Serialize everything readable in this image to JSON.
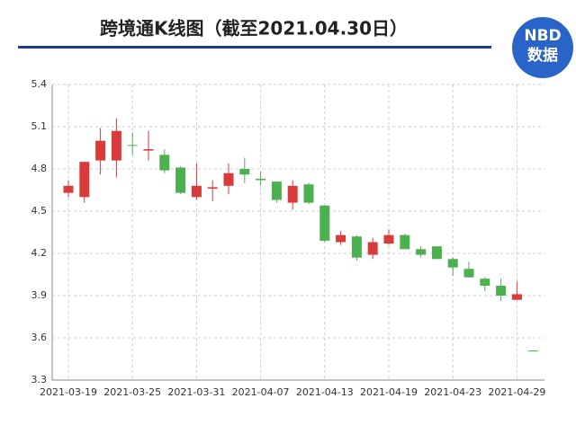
{
  "logo": [
    "NBD",
    "数据"
  ],
  "chart_data": {
    "type": "candlestick",
    "title": "跨境通K线图（截至2021.04.30日）",
    "categories": [
      "2021-03-19",
      null,
      null,
      null,
      "2021-03-25",
      null,
      null,
      null,
      "2021-03-31",
      null,
      null,
      null,
      "2021-04-07",
      null,
      null,
      null,
      "2021-04-13",
      null,
      null,
      null,
      "2021-04-19",
      null,
      null,
      null,
      "2021-04-23",
      null,
      null,
      null,
      "2021-04-29",
      null
    ],
    "open": [
      4.63,
      4.6,
      4.86,
      4.86,
      4.97,
      4.93,
      4.9,
      4.81,
      4.6,
      4.66,
      4.68,
      4.8,
      4.73,
      4.71,
      4.56,
      4.69,
      4.54,
      4.28,
      4.32,
      4.19,
      4.27,
      4.33,
      4.23,
      4.25,
      4.16,
      4.09,
      4.02,
      3.97,
      3.87,
      3.51
    ],
    "high": [
      4.72,
      4.85,
      5.09,
      5.16,
      5.06,
      5.07,
      4.94,
      4.82,
      4.84,
      4.72,
      4.84,
      4.88,
      4.78,
      4.71,
      4.72,
      4.7,
      4.54,
      4.36,
      4.33,
      4.31,
      4.37,
      4.34,
      4.25,
      4.25,
      4.17,
      4.14,
      4.03,
      4.02,
      4.0,
      3.51
    ],
    "low": [
      4.6,
      4.56,
      4.76,
      4.74,
      4.9,
      4.86,
      4.77,
      4.62,
      4.58,
      4.57,
      4.62,
      4.7,
      4.68,
      4.56,
      4.51,
      4.55,
      4.28,
      4.26,
      4.15,
      4.16,
      4.26,
      4.23,
      4.17,
      4.16,
      4.04,
      4.03,
      3.93,
      3.86,
      3.87,
      3.51
    ],
    "close": [
      4.68,
      4.85,
      5.0,
      5.07,
      4.97,
      4.94,
      4.79,
      4.63,
      4.68,
      4.67,
      4.77,
      4.76,
      4.72,
      4.58,
      4.68,
      4.56,
      4.29,
      4.33,
      4.17,
      4.28,
      4.33,
      4.23,
      4.19,
      4.16,
      4.1,
      4.03,
      3.97,
      3.9,
      3.91,
      3.51
    ],
    "up_color": "#d93a3a",
    "down_color": "#4cb050",
    "ylim": [
      3.3,
      5.4
    ],
    "yticks": [
      3.3,
      3.6,
      3.9,
      4.2,
      4.5,
      4.8,
      5.1,
      5.4
    ],
    "grid": true
  }
}
